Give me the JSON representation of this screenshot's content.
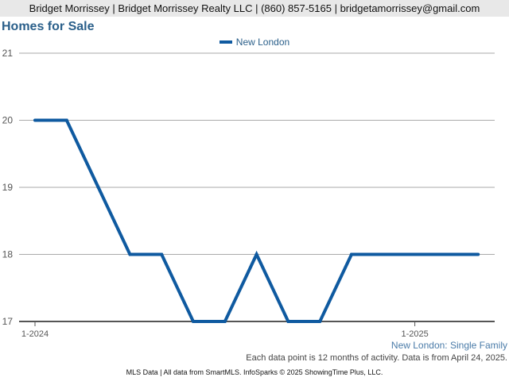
{
  "header": {
    "contact_line": "Bridget Morrissey | Bridget Morrissey Realty LLC | (860) 857-5165 | bridgetamorrissey@gmail.com"
  },
  "chart_title": "Homes for Sale",
  "subtitle": "New London: Single Family",
  "note": "Each data point is 12 months of activity. Data is from April 24, 2025.",
  "footer": "MLS Data | All data from SmartMLS. InfoSparks © 2025 ShowingTime Plus, LLC.",
  "colors": {
    "series": "#0f5aa0",
    "title": "#2a5f8a"
  },
  "chart_data": {
    "type": "line",
    "title": "Homes for Sale",
    "xlabel": "",
    "ylabel": "",
    "x_ticks": [
      "1-2024",
      "1-2025"
    ],
    "x": [
      "2024-01",
      "2024-02",
      "2024-03",
      "2024-04",
      "2024-05",
      "2024-06",
      "2024-07",
      "2024-08",
      "2024-09",
      "2024-10",
      "2024-11",
      "2024-12",
      "2025-01",
      "2025-02",
      "2025-03"
    ],
    "series": [
      {
        "name": "New London",
        "values": [
          20,
          20,
          19,
          18,
          18,
          17,
          17,
          18,
          17,
          17,
          18,
          18,
          18,
          18,
          18
        ]
      }
    ],
    "ylim": [
      17,
      21
    ],
    "y_ticks": [
      17,
      18,
      19,
      20,
      21
    ],
    "grid": true,
    "legend": "top-center"
  }
}
